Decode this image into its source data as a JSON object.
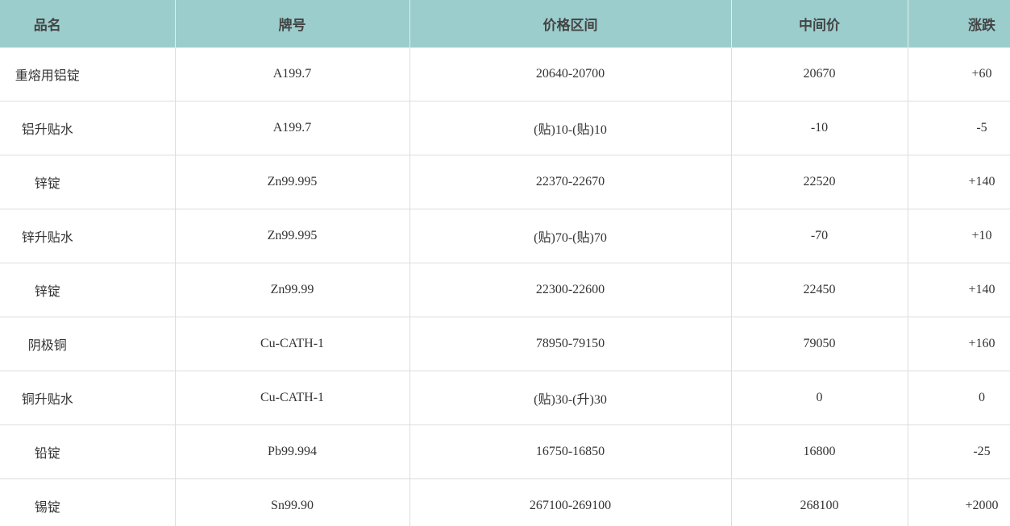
{
  "table": {
    "header": [
      "品名",
      "牌号",
      "价格区间",
      "中间价",
      "涨跌"
    ],
    "rows": [
      [
        "重熔用铝锭",
        "A199.7",
        "20640-20700",
        "20670",
        "+60"
      ],
      [
        "铝升贴水",
        "A199.7",
        "(贴)10-(贴)10",
        "-10",
        "-5"
      ],
      [
        "锌锭",
        "Zn99.995",
        "22370-22670",
        "22520",
        "+140"
      ],
      [
        "锌升贴水",
        "Zn99.995",
        "(贴)70-(贴)70",
        "-70",
        "+10"
      ],
      [
        "锌锭",
        "Zn99.99",
        "22300-22600",
        "22450",
        "+140"
      ],
      [
        "阴极铜",
        "Cu-CATH-1",
        "78950-79150",
        "79050",
        "+160"
      ],
      [
        "铜升贴水",
        "Cu-CATH-1",
        "(贴)30-(升)30",
        "0",
        "0"
      ],
      [
        "铅锭",
        "Pb99.994",
        "16750-16850",
        "16800",
        "-25"
      ],
      [
        "锡锭",
        "Sn99.90",
        "267100-269100",
        "268100",
        "+2000"
      ]
    ]
  }
}
